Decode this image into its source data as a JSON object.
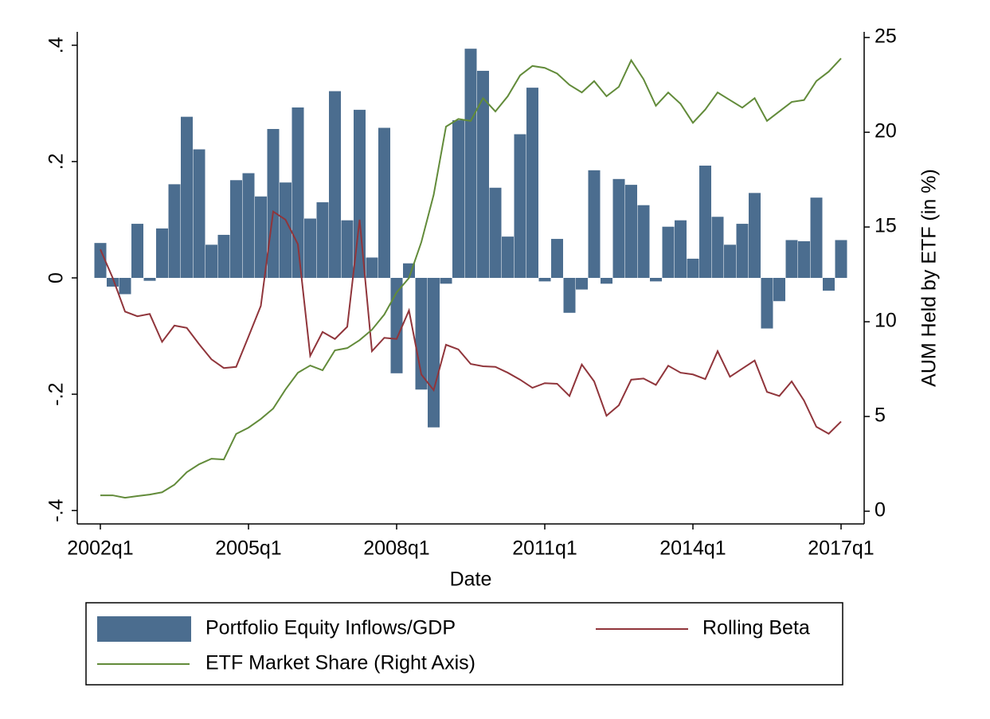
{
  "chart_data": {
    "type": "bar",
    "x_label": "Date",
    "y2_label": "AUM Held by ETF (in %)",
    "categories": [
      "2002q1",
      null,
      null,
      null,
      null,
      null,
      null,
      null,
      null,
      null,
      null,
      null,
      "2005q1",
      null,
      null,
      null,
      null,
      null,
      null,
      null,
      null,
      null,
      null,
      null,
      "2008q1",
      null,
      null,
      null,
      null,
      null,
      null,
      null,
      null,
      null,
      null,
      null,
      "2011q1",
      null,
      null,
      null,
      null,
      null,
      null,
      null,
      null,
      null,
      null,
      null,
      "2014q1",
      null,
      null,
      null,
      null,
      null,
      null,
      null,
      null,
      null,
      null,
      null,
      "2017q1"
    ],
    "ylim": [
      -0.423,
      0.423
    ],
    "yticks": [
      {
        "value": -0.4,
        "label": "-.4"
      },
      {
        "value": -0.2,
        "label": "-.2"
      },
      0,
      {
        "value": 0.2,
        "label": ".2"
      },
      {
        "value": 0.4,
        "label": ".4"
      }
    ],
    "y2lim": [
      -0.67,
      25.3
    ],
    "y2ticks": [
      0,
      5,
      10,
      15,
      20,
      25
    ],
    "series": [
      {
        "name": "Portfolio Equity Inflows/GDP",
        "type": "bar",
        "color": "#4b6d8f",
        "values": [
          0.06,
          -0.015,
          -0.028,
          0.093,
          -0.005,
          0.085,
          0.161,
          0.277,
          0.221,
          0.057,
          0.074,
          0.168,
          0.18,
          0.14,
          0.256,
          0.164,
          0.293,
          0.102,
          0.13,
          0.321,
          0.099,
          0.289,
          0.035,
          0.258,
          -0.164,
          0.025,
          -0.192,
          -0.257,
          -0.01,
          0.271,
          0.394,
          0.356,
          0.155,
          0.071,
          0.247,
          0.327,
          -0.006,
          0.067,
          -0.06,
          -0.02,
          0.185,
          -0.01,
          0.17,
          0.16,
          0.125,
          -0.006,
          0.088,
          0.099,
          0.033,
          0.193,
          0.105,
          0.057,
          0.093,
          0.146,
          -0.087,
          -0.04,
          0.065,
          0.063,
          0.138,
          -0.022,
          0.065
        ]
      },
      {
        "name": "Rolling Beta",
        "type": "line",
        "color": "#90353b",
        "values": [
          0.049,
          0.0,
          -0.058,
          -0.066,
          -0.062,
          -0.11,
          -0.082,
          -0.086,
          -0.114,
          -0.14,
          -0.155,
          -0.153,
          -0.101,
          -0.048,
          0.114,
          0.1,
          0.058,
          -0.134,
          -0.093,
          -0.105,
          -0.084,
          0.1,
          -0.126,
          -0.103,
          -0.105,
          -0.056,
          -0.166,
          -0.193,
          -0.115,
          -0.123,
          -0.148,
          -0.152,
          -0.153,
          -0.163,
          -0.175,
          -0.189,
          -0.181,
          -0.182,
          -0.203,
          -0.149,
          -0.178,
          -0.237,
          -0.219,
          -0.175,
          -0.173,
          -0.184,
          -0.151,
          -0.163,
          -0.166,
          -0.174,
          -0.126,
          -0.17,
          -0.156,
          -0.142,
          -0.196,
          -0.203,
          -0.178,
          -0.211,
          -0.256,
          -0.268,
          -0.247
        ]
      },
      {
        "name": "ETF Market Share (Right Axis)",
        "type": "line",
        "axis": "y2",
        "color": "#628b3a",
        "values": [
          0.84,
          0.84,
          0.71,
          0.8,
          0.88,
          1.0,
          1.4,
          2.06,
          2.48,
          2.77,
          2.73,
          4.08,
          4.41,
          4.87,
          5.42,
          6.43,
          7.31,
          7.69,
          7.44,
          8.49,
          8.61,
          9.03,
          9.58,
          10.38,
          11.55,
          12.31,
          14.2,
          16.7,
          20.3,
          20.7,
          20.6,
          21.8,
          21.1,
          21.9,
          23.0,
          23.5,
          23.4,
          23.1,
          22.5,
          22.1,
          22.7,
          21.9,
          22.4,
          23.8,
          22.8,
          21.4,
          22.1,
          21.5,
          20.5,
          21.2,
          22.1,
          21.7,
          21.3,
          21.8,
          20.6,
          21.1,
          21.6,
          21.7,
          22.7,
          23.2,
          23.9
        ]
      }
    ]
  }
}
